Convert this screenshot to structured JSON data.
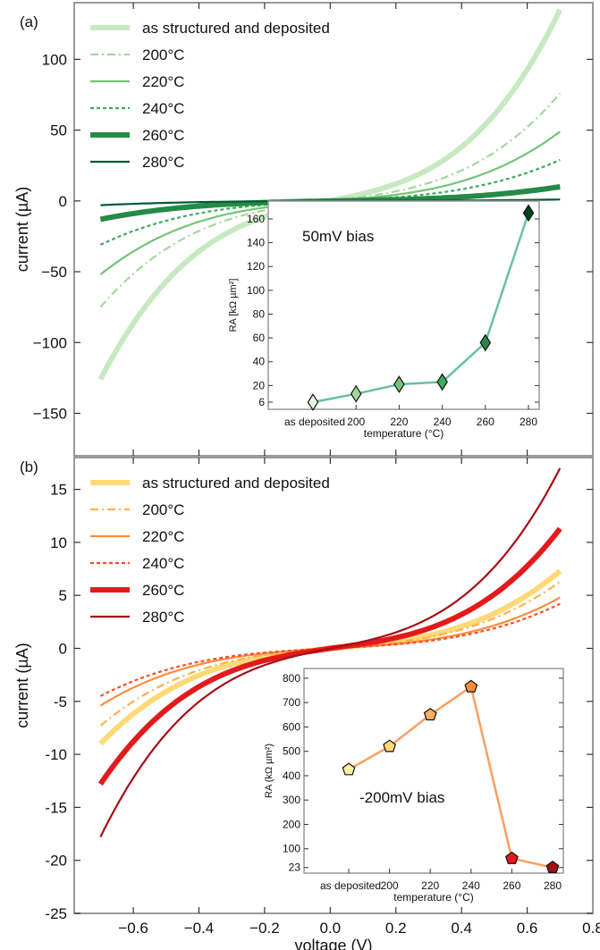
{
  "xlabel_shared": "voltage (V)",
  "chart_data": [
    {
      "panel_label": "(a)",
      "type": "line",
      "title": "",
      "xlabel": "",
      "ylabel": "current (µA)",
      "xlim": [
        -0.78,
        0.8
      ],
      "ylim": [
        -180,
        140
      ],
      "yticks": [
        100,
        50,
        0,
        -50,
        -100,
        -150
      ],
      "yticklabels": [
        "100",
        "50",
        "0",
        "−50",
        "−100",
        "−150"
      ],
      "x": [
        -0.7,
        0.7
      ],
      "legend_position": "top-left",
      "series": [
        {
          "name": "as structured and deposited",
          "color": "#c7e9c0",
          "style": "thick",
          "endpoints": [
            -126,
            135
          ]
        },
        {
          "name": "200°C",
          "color": "#a1d99b",
          "style": "dashdot",
          "endpoints": [
            -75,
            76
          ]
        },
        {
          "name": "220°C",
          "color": "#74c476",
          "style": "solid",
          "endpoints": [
            -52,
            49
          ]
        },
        {
          "name": "240°C",
          "color": "#41ab5d",
          "style": "dashed",
          "endpoints": [
            -31,
            29
          ]
        },
        {
          "name": "260°C",
          "color": "#238b45",
          "style": "thick",
          "endpoints": [
            -13,
            10
          ]
        },
        {
          "name": "280°C",
          "color": "#005a32",
          "style": "solid",
          "endpoints": [
            -3,
            1
          ]
        }
      ],
      "inset": {
        "annotation": "50mV bias",
        "ylabel": "RA [kΩ µm²]",
        "xlabel": "temperature (°C)",
        "categories": [
          "as deposited",
          "200",
          "220",
          "240",
          "260",
          "280"
        ],
        "values": [
          6,
          13,
          21,
          23,
          56,
          165
        ],
        "ylim": [
          0,
          175
        ],
        "yticks": [
          6,
          20,
          40,
          60,
          80,
          100,
          120,
          140,
          160
        ],
        "marker": "diamond",
        "line_color": "#66c2a4",
        "marker_colors": [
          "#e5f5e0",
          "#a1d99b",
          "#74c476",
          "#41ab5d",
          "#238b45",
          "#00441b"
        ]
      }
    },
    {
      "panel_label": "(b)",
      "type": "line",
      "title": "",
      "xlabel": "voltage (V)",
      "ylabel": "current (µA)",
      "xlim": [
        -0.78,
        0.8
      ],
      "ylim": [
        -25,
        18
      ],
      "xticks": [
        -0.6,
        -0.4,
        -0.2,
        0.0,
        0.2,
        0.4,
        0.6,
        0.8
      ],
      "xticklabels": [
        "−0.6",
        "−0.4",
        "−0.2",
        "0.0",
        "0.2",
        "0.4",
        "0.6",
        "0.8"
      ],
      "yticks": [
        15,
        10,
        5,
        0,
        -5,
        -10,
        -15,
        -20,
        -25
      ],
      "yticklabels": [
        "15",
        "10",
        "5",
        "0",
        "-5",
        "-10",
        "-15",
        "-20",
        "-25"
      ],
      "x": [
        -0.7,
        0.7
      ],
      "legend_position": "top-left",
      "series": [
        {
          "name": "as structured and deposited",
          "color": "#fed976",
          "style": "thick",
          "endpoints": [
            -9,
            7.3
          ]
        },
        {
          "name": "200°C",
          "color": "#feb24c",
          "style": "dashdot",
          "endpoints": [
            -7.3,
            6.3
          ]
        },
        {
          "name": "220°C",
          "color": "#fd8d3c",
          "style": "solid",
          "endpoints": [
            -5.4,
            4.8
          ]
        },
        {
          "name": "240°C",
          "color": "#fc4e2a",
          "style": "dashed",
          "endpoints": [
            -4.5,
            4.2
          ]
        },
        {
          "name": "260°C",
          "color": "#e31a1c",
          "style": "thick",
          "endpoints": [
            -12.8,
            11.3
          ]
        },
        {
          "name": "280°C",
          "color": "#a50f15",
          "style": "solid",
          "endpoints": [
            -17.8,
            17
          ]
        }
      ],
      "inset": {
        "annotation": "-200mV bias",
        "ylabel": "RA (kΩ µm²)",
        "xlabel": "temperature (°C)",
        "categories": [
          "as deposited",
          "200",
          "220",
          "240",
          "260",
          "280"
        ],
        "values": [
          425,
          520,
          650,
          765,
          60,
          23
        ],
        "ylim": [
          0,
          840
        ],
        "yticks": [
          23,
          100,
          200,
          300,
          400,
          500,
          600,
          700,
          800
        ],
        "marker": "pentagon",
        "line_color": "#fc9d62",
        "marker_colors": [
          "#ffeda0",
          "#fed976",
          "#fdae61",
          "#fd8d3c",
          "#e31a1c",
          "#a50f15"
        ]
      }
    }
  ]
}
